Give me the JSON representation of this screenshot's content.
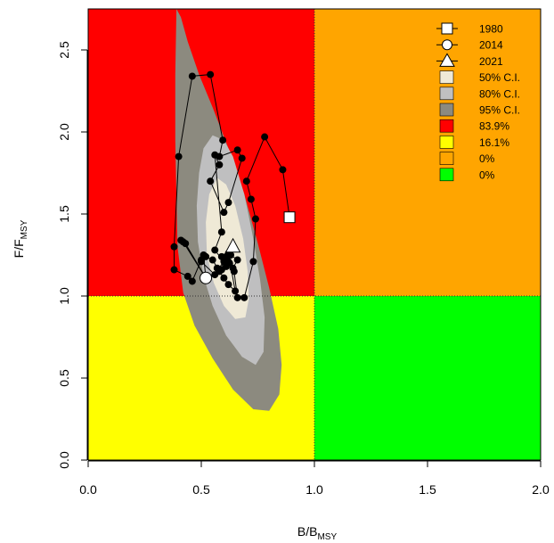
{
  "chart_data": {
    "type": "scatter",
    "subtype": "kobe-plot",
    "xlabel": {
      "main": "B/B",
      "sub": "MSY"
    },
    "ylabel": {
      "main": "F/F",
      "sub": "MSY"
    },
    "xlim": [
      0,
      2
    ],
    "ylim": [
      0,
      2.75
    ],
    "x_ticks": [
      {
        "value": 0.0,
        "label": "0.0"
      },
      {
        "value": 0.5,
        "label": "0.5"
      },
      {
        "value": 1.0,
        "label": "1.0"
      },
      {
        "value": 1.5,
        "label": "1.5"
      },
      {
        "value": 2.0,
        "label": "2.0"
      }
    ],
    "y_ticks": [
      {
        "value": 0.0,
        "label": "0.0"
      },
      {
        "value": 0.5,
        "label": "0.5"
      },
      {
        "value": 1.0,
        "label": "1.0"
      },
      {
        "value": 1.5,
        "label": "1.5"
      },
      {
        "value": 2.0,
        "label": "2.0"
      },
      {
        "value": 2.5,
        "label": "2.5"
      }
    ],
    "quadrants": [
      {
        "name": "overfished-and-overfishing",
        "x": [
          0,
          1
        ],
        "y": [
          1,
          2.75
        ],
        "color": "#ff0000"
      },
      {
        "name": "overfishing-not-overfished",
        "x": [
          1,
          2
        ],
        "y": [
          1,
          2.75
        ],
        "color": "#ffa500"
      },
      {
        "name": "overfished-not-overfishing",
        "x": [
          0,
          1
        ],
        "y": [
          0,
          1
        ],
        "color": "#ffff00"
      },
      {
        "name": "sustainable",
        "x": [
          1,
          2
        ],
        "y": [
          0,
          1
        ],
        "color": "#00ff00"
      }
    ],
    "confidence_regions": [
      {
        "level": "95% C.I.",
        "color": "#8c8a7f",
        "polygon": [
          [
            0.39,
            2.75
          ],
          [
            0.41,
            2.7
          ],
          [
            0.44,
            2.55
          ],
          [
            0.49,
            2.35
          ],
          [
            0.55,
            2.15
          ],
          [
            0.62,
            1.9
          ],
          [
            0.69,
            1.62
          ],
          [
            0.75,
            1.32
          ],
          [
            0.8,
            1.05
          ],
          [
            0.84,
            0.8
          ],
          [
            0.855,
            0.58
          ],
          [
            0.845,
            0.4
          ],
          [
            0.8,
            0.3
          ],
          [
            0.73,
            0.31
          ],
          [
            0.64,
            0.43
          ],
          [
            0.55,
            0.62
          ],
          [
            0.47,
            0.82
          ],
          [
            0.42,
            1.02
          ],
          [
            0.395,
            1.3
          ],
          [
            0.39,
            1.6
          ],
          [
            0.385,
            1.95
          ],
          [
            0.385,
            2.35
          ],
          [
            0.39,
            2.75
          ]
        ]
      },
      {
        "level": "80% C.I.",
        "color": "#bfbfc0",
        "polygon": [
          [
            0.55,
            1.98
          ],
          [
            0.6,
            1.95
          ],
          [
            0.64,
            1.85
          ],
          [
            0.69,
            1.62
          ],
          [
            0.73,
            1.35
          ],
          [
            0.76,
            1.1
          ],
          [
            0.78,
            0.87
          ],
          [
            0.775,
            0.66
          ],
          [
            0.74,
            0.58
          ],
          [
            0.68,
            0.63
          ],
          [
            0.61,
            0.76
          ],
          [
            0.55,
            0.94
          ],
          [
            0.51,
            1.12
          ],
          [
            0.485,
            1.33
          ],
          [
            0.48,
            1.55
          ],
          [
            0.49,
            1.75
          ],
          [
            0.51,
            1.9
          ],
          [
            0.55,
            1.98
          ]
        ]
      },
      {
        "level": "50% C.I.",
        "color": "#efe9d6",
        "polygon": [
          [
            0.57,
            1.72
          ],
          [
            0.61,
            1.68
          ],
          [
            0.65,
            1.55
          ],
          [
            0.685,
            1.35
          ],
          [
            0.705,
            1.15
          ],
          [
            0.71,
            0.98
          ],
          [
            0.695,
            0.87
          ],
          [
            0.65,
            0.86
          ],
          [
            0.6,
            0.94
          ],
          [
            0.555,
            1.08
          ],
          [
            0.525,
            1.25
          ],
          [
            0.52,
            1.45
          ],
          [
            0.535,
            1.62
          ],
          [
            0.57,
            1.72
          ]
        ]
      }
    ],
    "trajectory": [
      [
        0.89,
        1.48
      ],
      [
        0.86,
        1.77
      ],
      [
        0.78,
        1.97
      ],
      [
        0.7,
        1.7
      ],
      [
        0.72,
        1.59
      ],
      [
        0.74,
        1.47
      ],
      [
        0.73,
        1.21
      ],
      [
        0.69,
        0.99
      ],
      [
        0.66,
        0.99
      ],
      [
        0.645,
        1.15
      ],
      [
        0.625,
        1.2
      ],
      [
        0.61,
        1.24
      ],
      [
        0.58,
        1.15
      ],
      [
        0.55,
        1.22
      ],
      [
        0.52,
        1.24
      ],
      [
        0.5,
        1.22
      ],
      [
        0.46,
        1.09
      ],
      [
        0.44,
        1.12
      ],
      [
        0.38,
        1.16
      ],
      [
        0.38,
        1.3
      ],
      [
        0.4,
        1.85
      ],
      [
        0.46,
        2.34
      ],
      [
        0.54,
        2.35
      ],
      [
        0.595,
        1.95
      ],
      [
        0.58,
        1.85
      ],
      [
        0.66,
        1.89
      ],
      [
        0.68,
        1.84
      ],
      [
        0.62,
        1.57
      ],
      [
        0.6,
        1.51
      ],
      [
        0.54,
        1.7
      ],
      [
        0.58,
        1.8
      ],
      [
        0.56,
        1.86
      ],
      [
        0.59,
        1.39
      ],
      [
        0.56,
        1.28
      ],
      [
        0.6,
        1.21
      ],
      [
        0.61,
        1.18
      ],
      [
        0.57,
        1.17
      ],
      [
        0.6,
        1.11
      ],
      [
        0.62,
        1.07
      ],
      [
        0.65,
        1.03
      ],
      [
        0.62,
        1.26
      ],
      [
        0.66,
        1.22
      ],
      [
        0.64,
        1.17
      ],
      [
        0.62,
        1.21
      ],
      [
        0.59,
        1.24
      ],
      [
        0.63,
        1.25
      ],
      [
        0.61,
        1.2
      ],
      [
        0.59,
        1.16
      ],
      [
        0.51,
        1.1
      ],
      [
        0.52,
        1.11
      ],
      [
        0.42,
        1.33
      ],
      [
        0.41,
        1.34
      ],
      [
        0.43,
        1.32
      ],
      [
        0.52,
        1.11
      ],
      [
        0.51,
        1.25
      ],
      [
        0.5,
        1.21
      ],
      [
        0.56,
        1.13
      ],
      [
        0.64,
        1.3
      ]
    ],
    "marked_points": [
      {
        "year": "1980",
        "x": 0.89,
        "y": 1.48,
        "symbol": "square"
      },
      {
        "year": "2014",
        "x": 0.52,
        "y": 1.11,
        "symbol": "circle"
      },
      {
        "year": "2021",
        "x": 0.64,
        "y": 1.3,
        "symbol": "triangle"
      }
    ],
    "reference_lines": {
      "x": 1.0,
      "y": 1.0,
      "style": "dotted"
    },
    "legend": {
      "position": "top-right",
      "items": [
        {
          "label": "1980",
          "symbol": "square-line",
          "color": "#ffffff"
        },
        {
          "label": "2014",
          "symbol": "circle-line",
          "color": "#ffffff"
        },
        {
          "label": "2021",
          "symbol": "triangle-line",
          "color": "#ffffff"
        },
        {
          "label": "50% C.I.",
          "symbol": "box",
          "color": "#efe9d6"
        },
        {
          "label": "80% C.I.",
          "symbol": "box",
          "color": "#bfbfc0"
        },
        {
          "label": "95% C.I.",
          "symbol": "box",
          "color": "#8c8a7f"
        },
        {
          "label": "83.9%",
          "symbol": "box",
          "color": "#ff0000"
        },
        {
          "label": "16.1%",
          "symbol": "box",
          "color": "#ffff00"
        },
        {
          "label": "0%",
          "symbol": "box",
          "color": "#ffa500"
        },
        {
          "label": "0%",
          "symbol": "box",
          "color": "#00ff00"
        }
      ]
    }
  }
}
